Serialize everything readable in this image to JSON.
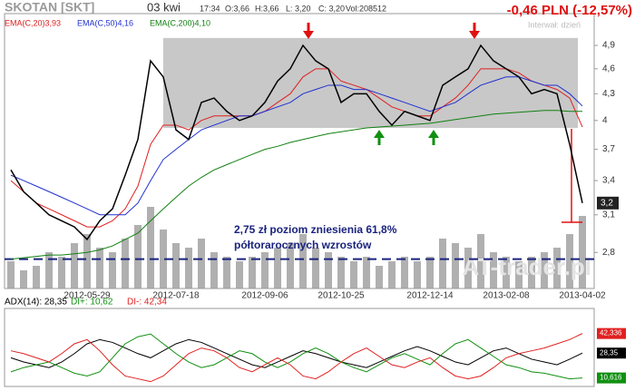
{
  "chart_data": [
    {
      "type": "line",
      "title": "SKOTAN [SKT]",
      "date": "03 kwi",
      "time": "17:34",
      "open": "O:3,66",
      "high": "H:3,66",
      "low": "L: 3,20",
      "close_text": "C: 3,20",
      "volume_text": "Vol:208512",
      "change": "-0,46 PLN (-12,57%)",
      "interval": "Interwał: dzień",
      "watermark": "AT-trader.pl",
      "annotation": [
        "2,75 zł poziom zniesienia 61,8%",
        "półtorarocznych wzrostów"
      ],
      "support_level": 2.75,
      "channel": [
        3.92,
        5.0
      ],
      "log_scale": true,
      "ylim": [
        2.54,
        5.34
      ],
      "yticks": [
        {
          "value": 4.9,
          "label": "4,9"
        },
        {
          "value": 4.6,
          "label": "4,6"
        },
        {
          "value": 4.3,
          "label": "4,3"
        },
        4,
        {
          "value": 3.7,
          "label": "3,7"
        },
        {
          "value": 3.4,
          "label": "3,4"
        },
        {
          "value": 3.1,
          "label": "3,1"
        },
        {
          "value": 2.8,
          "label": "2,8"
        }
      ],
      "categories": [
        null,
        null,
        null,
        null,
        null,
        null,
        "2012-05-29",
        null,
        null,
        null,
        null,
        null,
        null,
        "2012-07-18",
        null,
        null,
        null,
        null,
        null,
        null,
        "2012-09-06",
        null,
        null,
        null,
        null,
        null,
        "2012-10-25",
        null,
        null,
        null,
        null,
        null,
        null,
        "2012-12-14",
        null,
        null,
        null,
        null,
        null,
        "2013-02-08",
        null,
        null,
        null,
        null,
        null,
        "2013-04-02"
      ],
      "close": {
        "color": "#000000",
        "values": [
          3.5,
          3.3,
          3.2,
          3.1,
          3.05,
          3.0,
          2.9,
          3.05,
          3.15,
          3.45,
          3.8,
          4.7,
          4.5,
          3.9,
          3.8,
          4.2,
          4.25,
          4.1,
          4.0,
          4.05,
          4.2,
          4.45,
          4.6,
          4.9,
          4.7,
          4.6,
          4.2,
          4.3,
          4.3,
          4.1,
          3.95,
          4.1,
          4.05,
          4.0,
          4.4,
          4.5,
          4.6,
          4.9,
          4.7,
          4.6,
          4.5,
          4.3,
          4.35,
          4.3,
          3.75,
          3.2
        ]
      },
      "last_price": {
        "value": 3.2,
        "label": "3,2"
      },
      "volume": {
        "color": "#b0b0b0",
        "values": [
          30,
          20,
          25,
          40,
          35,
          50,
          60,
          45,
          40,
          55,
          70,
          90,
          65,
          50,
          45,
          55,
          40,
          35,
          30,
          35,
          40,
          45,
          50,
          60,
          45,
          40,
          35,
          30,
          35,
          25,
          30,
          35,
          30,
          35,
          55,
          50,
          45,
          60,
          40,
          35,
          30,
          35,
          40,
          45,
          60,
          80
        ]
      },
      "series": [
        {
          "name": "EMA(C,20)3,93",
          "color": "#e02020",
          "values": [
            3.4,
            3.3,
            3.2,
            3.15,
            3.1,
            3.05,
            3.0,
            3.0,
            3.05,
            3.15,
            3.35,
            3.75,
            3.95,
            3.95,
            3.9,
            4.0,
            4.05,
            4.05,
            4.05,
            4.05,
            4.1,
            4.2,
            4.3,
            4.5,
            4.6,
            4.6,
            4.45,
            4.4,
            4.35,
            4.25,
            4.15,
            4.1,
            4.05,
            4.05,
            4.15,
            4.25,
            4.4,
            4.6,
            4.6,
            4.6,
            4.55,
            4.45,
            4.4,
            4.35,
            4.25,
            3.93
          ]
        },
        {
          "name": "EMA(C,50)4,16",
          "color": "#2030d0",
          "values": [
            3.45,
            3.4,
            3.35,
            3.3,
            3.25,
            3.2,
            3.15,
            3.1,
            3.1,
            3.1,
            3.2,
            3.4,
            3.6,
            3.7,
            3.8,
            3.9,
            3.95,
            4.0,
            4.05,
            4.05,
            4.1,
            4.15,
            4.2,
            4.3,
            4.35,
            4.4,
            4.4,
            4.35,
            4.35,
            4.3,
            4.25,
            4.2,
            4.15,
            4.1,
            4.15,
            4.2,
            4.3,
            4.4,
            4.45,
            4.5,
            4.5,
            4.45,
            4.4,
            4.4,
            4.3,
            4.16
          ]
        },
        {
          "name": "EMA(C,200)4,10",
          "color": "#108010",
          "values": [
            2.75,
            2.76,
            2.77,
            2.78,
            2.78,
            2.79,
            2.8,
            2.82,
            2.85,
            2.9,
            2.95,
            3.05,
            3.15,
            3.25,
            3.35,
            3.43,
            3.5,
            3.55,
            3.6,
            3.65,
            3.7,
            3.73,
            3.77,
            3.8,
            3.83,
            3.86,
            3.88,
            3.9,
            3.92,
            3.93,
            3.94,
            3.95,
            3.96,
            3.97,
            3.99,
            4.01,
            4.03,
            4.05,
            4.07,
            4.08,
            4.09,
            4.1,
            4.11,
            4.11,
            4.1,
            4.1
          ]
        }
      ]
    },
    {
      "type": "line",
      "ylim": [
        0,
        57
      ],
      "series": [
        {
          "name": "ADX(14): 28,35",
          "color": "#000000",
          "values": [
            25,
            22,
            20,
            18,
            22,
            28,
            35,
            38,
            36,
            32,
            28,
            25,
            30,
            35,
            38,
            36,
            32,
            28,
            24,
            20,
            18,
            22,
            26,
            30,
            28,
            25,
            22,
            20,
            18,
            22,
            26,
            30,
            33,
            30,
            26,
            22,
            20,
            25,
            30,
            32,
            28,
            24,
            22,
            20,
            24,
            28.35
          ],
          "last_label": "28,35"
        },
        {
          "name": "DI+: 10,62",
          "color": "#109010",
          "values": [
            15,
            18,
            20,
            22,
            18,
            14,
            12,
            15,
            25,
            35,
            40,
            42,
            35,
            28,
            22,
            18,
            20,
            25,
            30,
            28,
            22,
            18,
            22,
            28,
            32,
            28,
            22,
            18,
            15,
            20,
            25,
            28,
            24,
            20,
            28,
            35,
            38,
            32,
            26,
            20,
            18,
            15,
            14,
            12,
            10,
            10.62
          ],
          "last_label": "10,616"
        },
        {
          "name": "DI-: 42,34",
          "color": "#e02020",
          "values": [
            30,
            28,
            25,
            22,
            28,
            35,
            38,
            30,
            20,
            12,
            10,
            8,
            12,
            20,
            28,
            32,
            30,
            25,
            18,
            15,
            20,
            25,
            20,
            12,
            10,
            15,
            22,
            28,
            32,
            26,
            20,
            18,
            22,
            25,
            18,
            12,
            10,
            12,
            18,
            25,
            28,
            30,
            32,
            35,
            38,
            42.34
          ],
          "last_label": "42,336"
        }
      ]
    }
  ]
}
